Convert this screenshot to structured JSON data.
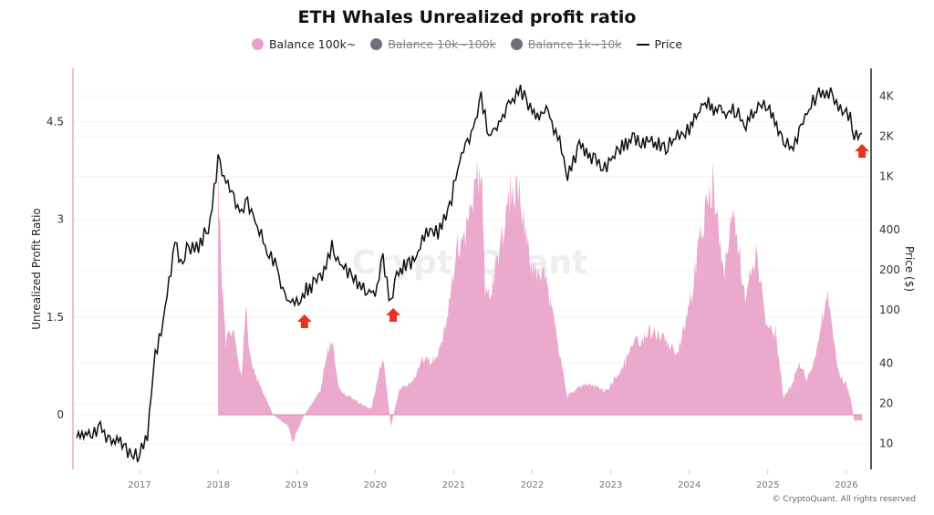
{
  "chart_data": {
    "type": "area+line",
    "title": "ETH Whales Unrealized profit ratio",
    "legend": {
      "placement": "top",
      "items": [
        {
          "label": "Balance 100k~",
          "color": "#e8a0c8",
          "active": true,
          "marker": "dot"
        },
        {
          "label": "Balance 10k~100k",
          "color": "#71707a",
          "active": false,
          "marker": "dot"
        },
        {
          "label": "Balance 1k~10k",
          "color": "#71707a",
          "active": false,
          "marker": "dot"
        },
        {
          "label": "Price",
          "color": "#111111",
          "active": true,
          "marker": "line"
        }
      ]
    },
    "x_ticks": [
      "2017",
      "2018",
      "2019",
      "2020",
      "2021",
      "2022",
      "2023",
      "2024",
      "2025",
      "2026"
    ],
    "xlim": [
      2016.2,
      2026.3
    ],
    "y_left": {
      "label": "Unrealized Profit Ratio",
      "ticks": [
        "0",
        "1.5",
        "3",
        "4.5"
      ],
      "tick_values": [
        0,
        1.5,
        3,
        4.5
      ],
      "range": [
        -0.84,
        5.32
      ]
    },
    "y_right": {
      "label": "Price ($)",
      "scale": "log",
      "ticks": [
        "10",
        "20",
        "40",
        "100",
        "200",
        "400",
        "1K",
        "2K",
        "4K"
      ],
      "tick_values": [
        10,
        20,
        40,
        100,
        200,
        400,
        1000,
        2000,
        4000
      ],
      "range": [
        6.4,
        6450
      ]
    },
    "grid": true,
    "watermark": "CryptoQuant",
    "series": [
      {
        "name": "Balance 100k~",
        "axis": "left",
        "type": "area",
        "color": "#e8a0c8",
        "x": [
          2018.0,
          2018.05,
          2018.1,
          2018.2,
          2018.3,
          2018.35,
          2018.4,
          2018.5,
          2018.6,
          2018.7,
          2018.8,
          2018.9,
          2018.95,
          2019.0,
          2019.1,
          2019.2,
          2019.3,
          2019.4,
          2019.45,
          2019.55,
          2019.7,
          2019.8,
          2019.95,
          2020.0,
          2020.1,
          2020.2,
          2020.3,
          2020.5,
          2020.6,
          2020.7,
          2020.8,
          2020.9,
          2021.05,
          2021.15,
          2021.3,
          2021.35,
          2021.4,
          2021.5,
          2021.6,
          2021.75,
          2021.85,
          2022.0,
          2022.15,
          2022.3,
          2022.45,
          2022.6,
          2022.75,
          2022.95,
          2023.1,
          2023.3,
          2023.5,
          2023.65,
          2023.85,
          2024.0,
          2024.2,
          2024.3,
          2024.45,
          2024.55,
          2024.7,
          2024.85,
          2025.0,
          2025.1,
          2025.2,
          2025.3,
          2025.4,
          2025.5,
          2025.65,
          2025.75,
          2025.9,
          2026.0,
          2026.05,
          2026.1,
          2026.2
        ],
        "values": [
          4.0,
          2.2,
          1.2,
          1.5,
          0.6,
          1.9,
          1.0,
          0.6,
          0.3,
          0.0,
          -0.1,
          -0.2,
          -0.5,
          -0.3,
          0.0,
          0.2,
          0.4,
          1.1,
          1.2,
          0.4,
          0.3,
          0.2,
          0.1,
          0.4,
          1.0,
          -0.2,
          0.4,
          0.6,
          1.0,
          0.9,
          1.0,
          1.5,
          2.8,
          3.1,
          4.0,
          4.3,
          2.0,
          2.2,
          3.0,
          3.9,
          3.6,
          2.4,
          2.4,
          1.4,
          0.3,
          0.5,
          0.5,
          0.4,
          0.7,
          1.2,
          1.4,
          1.3,
          1.0,
          1.8,
          3.4,
          3.9,
          2.5,
          3.7,
          2.0,
          2.8,
          1.4,
          1.4,
          0.3,
          0.5,
          0.9,
          0.6,
          1.2,
          2.1,
          0.7,
          0.5,
          0.3,
          -0.1,
          -0.1
        ]
      },
      {
        "name": "Price",
        "axis": "right",
        "type": "line",
        "color": "#111111",
        "x": [
          2016.2,
          2016.4,
          2016.5,
          2016.6,
          2016.8,
          2016.9,
          2017.0,
          2017.1,
          2017.2,
          2017.3,
          2017.45,
          2017.55,
          2017.6,
          2017.75,
          2017.9,
          2018.0,
          2018.1,
          2018.2,
          2018.3,
          2018.35,
          2018.45,
          2018.6,
          2018.75,
          2018.85,
          2019.0,
          2019.1,
          2019.3,
          2019.45,
          2019.55,
          2019.7,
          2019.85,
          2020.0,
          2020.1,
          2020.2,
          2020.3,
          2020.5,
          2020.65,
          2020.8,
          2020.95,
          2021.1,
          2021.2,
          2021.35,
          2021.45,
          2021.55,
          2021.7,
          2021.85,
          2022.0,
          2022.2,
          2022.35,
          2022.45,
          2022.6,
          2022.8,
          2022.95,
          2023.1,
          2023.3,
          2023.5,
          2023.7,
          2023.85,
          2024.0,
          2024.2,
          2024.4,
          2024.6,
          2024.7,
          2024.9,
          2025.0,
          2025.2,
          2025.3,
          2025.45,
          2025.6,
          2025.7,
          2025.85,
          2025.95,
          2026.05,
          2026.1,
          2026.2
        ],
        "values": [
          11,
          12,
          13,
          11,
          10,
          8,
          8,
          12,
          45,
          80,
          330,
          200,
          300,
          300,
          450,
          1300,
          900,
          700,
          500,
          700,
          500,
          300,
          210,
          120,
          110,
          140,
          170,
          300,
          220,
          180,
          150,
          130,
          250,
          110,
          200,
          230,
          400,
          380,
          600,
          1500,
          1800,
          4000,
          2000,
          2300,
          3400,
          4500,
          3000,
          3000,
          1800,
          1000,
          1700,
          1300,
          1200,
          1600,
          1900,
          1850,
          1650,
          2000,
          2300,
          3600,
          3000,
          3100,
          2400,
          3400,
          3300,
          1800,
          1600,
          2600,
          3800,
          4400,
          4000,
          3000,
          2800,
          1900,
          2100
        ]
      }
    ],
    "annotations": [
      {
        "type": "arrow-up",
        "color": "#e8321e",
        "x": 2019.1
      },
      {
        "type": "arrow-up",
        "color": "#e8321e",
        "x": 2020.23
      },
      {
        "type": "arrow-up",
        "color": "#e8321e",
        "x": 2026.2
      }
    ]
  },
  "footer": {
    "credit": "© CryptoQuant. All rights reserved"
  }
}
